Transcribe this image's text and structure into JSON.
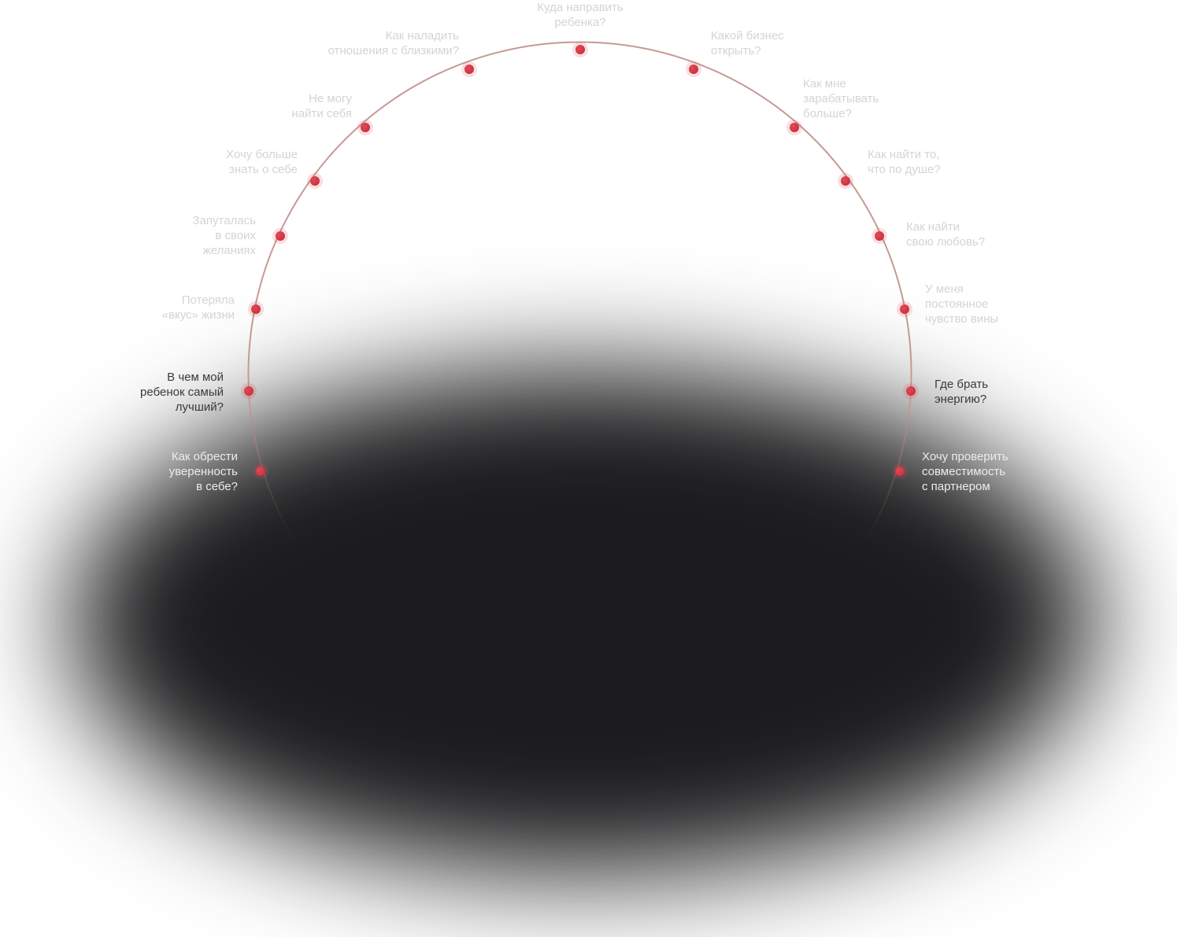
{
  "diagram": {
    "colors": {
      "arc_stroke": "#c59a94",
      "arc_fade": "#2a2a2a",
      "dot": "#c8323e",
      "dot_glow": "#e04a56",
      "label": "#d4d4d4",
      "label_dim": "#3a3a3a",
      "label_bright": "#ececec",
      "shadow": "#1c1c1e",
      "background": "#ffffff"
    },
    "questions": [
      {
        "id": "q-child-direction",
        "text": "Куда направить\nребенка?"
      },
      {
        "id": "q-business",
        "text": "Какой бизнес\nоткрыть?"
      },
      {
        "id": "q-earn-more",
        "text": "Как мне\nзарабатывать\nбольше?"
      },
      {
        "id": "q-find-passion",
        "text": "Как найти то,\nчто по душе?"
      },
      {
        "id": "q-find-love",
        "text": "Как найти\nсвою любовь?"
      },
      {
        "id": "q-guilt",
        "text": "У меня\nпостоянное\nчувство вины"
      },
      {
        "id": "q-right-partial",
        "text": "Где брать\nэнергию?"
      },
      {
        "id": "q-compatibility",
        "text": "Хочу проверить\nсовместимость\nс партнером"
      },
      {
        "id": "q-confidence",
        "text": "Как обрести\nуверенность\nв себе?"
      },
      {
        "id": "q-child-talent",
        "text": "В чем мой\nребенок самый\nлучший?"
      },
      {
        "id": "q-lost-taste",
        "text": "Потеряла\n«вкус» жизни"
      },
      {
        "id": "q-confused-desires",
        "text": "Запуталась\nв своих\nжеланиях"
      },
      {
        "id": "q-know-myself",
        "text": "Хочу больше\nзнать о себе"
      },
      {
        "id": "q-find-myself",
        "text": "Не могу\nнайти себя"
      },
      {
        "id": "q-relationships",
        "text": "Как наладить\nотношения с близкими?"
      }
    ]
  }
}
